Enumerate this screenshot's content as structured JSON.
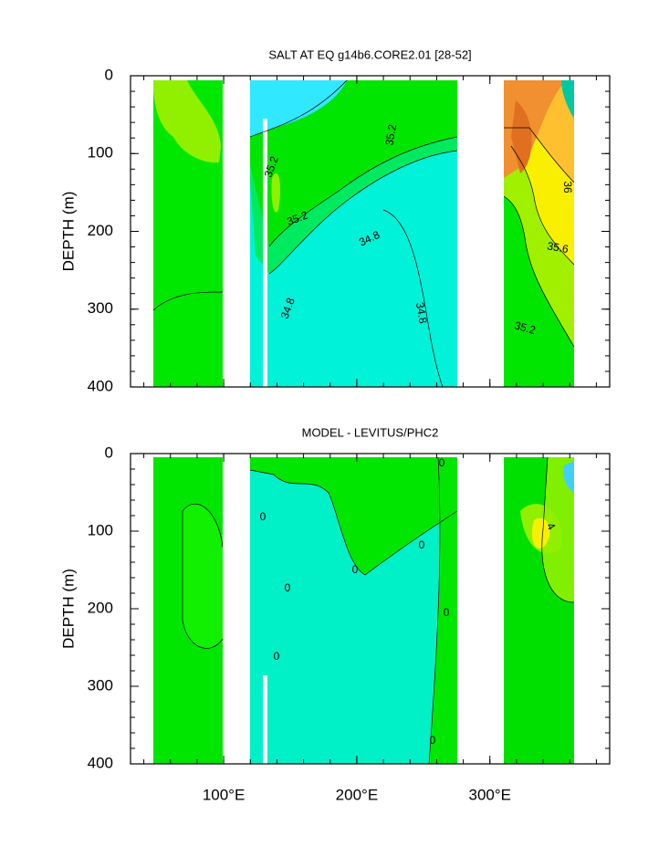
{
  "chart_data": [
    {
      "type": "contour",
      "title": "SALT AT EQ g14b6.CORE2.01 [28-52]",
      "y_label": "DEPTH (m)",
      "xlim": [
        30,
        390
      ],
      "xticks": [
        100,
        200,
        300
      ],
      "ylim": [
        0,
        400
      ],
      "yticks": [
        0,
        100,
        200,
        300,
        400
      ],
      "y_inverted": true,
      "contour_labels": [
        35.2,
        35.2,
        35.2,
        35.2,
        34.8,
        34.8,
        34.8,
        36,
        35.6
      ]
    },
    {
      "type": "contour",
      "title": "MODEL - LEVITUS/PHC2",
      "y_label": "DEPTH (m)",
      "xlim": [
        30,
        390
      ],
      "xticks": [
        {
          "value": 100,
          "label": "100°E"
        },
        {
          "value": 200,
          "label": "200°E"
        },
        {
          "value": 300,
          "label": "300°E"
        }
      ],
      "ylim": [
        0,
        400
      ],
      "yticks": [
        0,
        100,
        200,
        300,
        400
      ],
      "y_inverted": true,
      "contour_labels": [
        0,
        0,
        0,
        0,
        0,
        0,
        0,
        0,
        4
      ]
    }
  ]
}
